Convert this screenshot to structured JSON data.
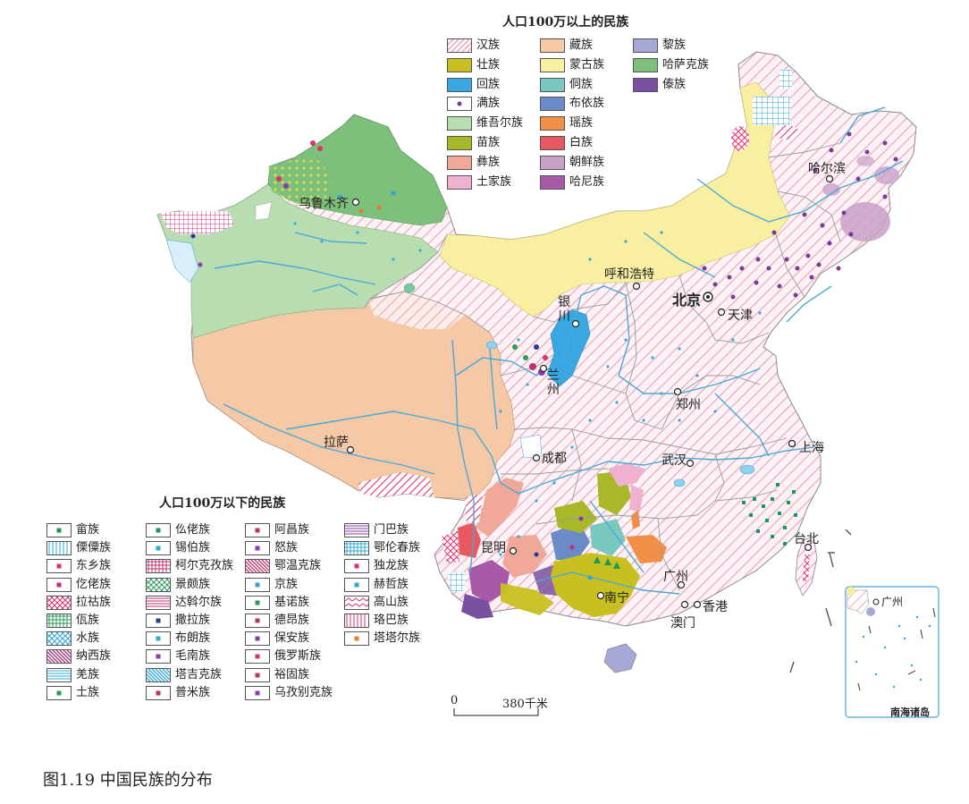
{
  "legend_major": {
    "title": "人口100万以上的民族",
    "items": [
      {
        "label": "汉族",
        "style": "hatch",
        "color": "#e8a0b8"
      },
      {
        "label": "壮族",
        "style": "solid",
        "color": "#c8c020"
      },
      {
        "label": "回族",
        "style": "solid",
        "color": "#3aa8e0"
      },
      {
        "label": "满族",
        "style": "dot",
        "color": "#7a3a9a"
      },
      {
        "label": "维吾尔族",
        "style": "solid",
        "color": "#b7ddb0"
      },
      {
        "label": "苗族",
        "style": "solid",
        "color": "#a8b828"
      },
      {
        "label": "彝族",
        "style": "solid",
        "color": "#f0a898"
      },
      {
        "label": "土家族",
        "style": "solid",
        "color": "#f0b0d0"
      },
      {
        "label": "藏族",
        "style": "solid",
        "color": "#f5c9a6"
      },
      {
        "label": "蒙古族",
        "style": "solid",
        "color": "#f8f0a0"
      },
      {
        "label": "侗族",
        "style": "solid",
        "color": "#78c8c0"
      },
      {
        "label": "布依族",
        "style": "solid",
        "color": "#6a8ac8"
      },
      {
        "label": "瑶族",
        "style": "solid",
        "color": "#f09048"
      },
      {
        "label": "白族",
        "style": "solid",
        "color": "#e85860"
      },
      {
        "label": "朝鲜族",
        "style": "solid",
        "color": "#c8a0c8"
      },
      {
        "label": "哈尼族",
        "style": "solid",
        "color": "#a85aa8"
      },
      {
        "label": "黎族",
        "style": "solid",
        "color": "#a8a8d8"
      },
      {
        "label": "哈萨克族",
        "style": "solid",
        "color": "#7cc07c"
      },
      {
        "label": "傣族",
        "style": "solid",
        "color": "#7a50a0"
      }
    ]
  },
  "legend_minor": {
    "title": "人口100万以下的民族",
    "items": [
      {
        "label": "畲族",
        "style": "sym",
        "color": "#1a9a5a"
      },
      {
        "label": "傈僳族",
        "style": "vlines",
        "color": "#2aa8d8"
      },
      {
        "label": "东乡族",
        "style": "sym",
        "color": "#e0306a"
      },
      {
        "label": "仡佬族",
        "style": "sym",
        "color": "#c03070"
      },
      {
        "label": "拉祜族",
        "style": "cross",
        "color": "#e0306a"
      },
      {
        "label": "佤族",
        "style": "grid",
        "color": "#2a9a5a"
      },
      {
        "label": "水族",
        "style": "cross",
        "color": "#2aa8d8"
      },
      {
        "label": "纳西族",
        "style": "diag",
        "color": "#a03080"
      },
      {
        "label": "羌族",
        "style": "hlines",
        "color": "#2aa8d8"
      },
      {
        "label": "土族",
        "style": "sym",
        "color": "#2a9a5a"
      },
      {
        "label": "仫佬族",
        "style": "sym",
        "color": "#1a9a5a"
      },
      {
        "label": "锡伯族",
        "style": "sym",
        "color": "#2aa8d8"
      },
      {
        "label": "柯尔克孜族",
        "style": "grid",
        "color": "#c03070"
      },
      {
        "label": "景颇族",
        "style": "cross",
        "color": "#2a9a5a"
      },
      {
        "label": "达斡尔族",
        "style": "hlines",
        "color": "#c03070"
      },
      {
        "label": "撒拉族",
        "style": "sym",
        "color": "#2a3a9a"
      },
      {
        "label": "布朗族",
        "style": "sym",
        "color": "#2aa8d8"
      },
      {
        "label": "毛南族",
        "style": "sym",
        "color": "#8a3ab0"
      },
      {
        "label": "塔吉克族",
        "style": "diag",
        "color": "#2aa8d8"
      },
      {
        "label": "普米族",
        "style": "sym",
        "color": "#c03070"
      },
      {
        "label": "阿昌族",
        "style": "sym",
        "color": "#c03070"
      },
      {
        "label": "怒族",
        "style": "sym",
        "color": "#8a3ab0"
      },
      {
        "label": "鄂温克族",
        "style": "diag",
        "color": "#c03070"
      },
      {
        "label": "京族",
        "style": "sym",
        "color": "#2aa8d8"
      },
      {
        "label": "基诺族",
        "style": "sym",
        "color": "#2a9a5a"
      },
      {
        "label": "德昂族",
        "style": "sym",
        "color": "#c03070"
      },
      {
        "label": "保安族",
        "style": "sym",
        "color": "#8a3ab0"
      },
      {
        "label": "俄罗斯族",
        "style": "sym",
        "color": "#e0306a"
      },
      {
        "label": "裕固族",
        "style": "sym",
        "color": "#c03070"
      },
      {
        "label": "乌孜别克族",
        "style": "sym",
        "color": "#8a3ab0"
      },
      {
        "label": "门巴族",
        "style": "hlines",
        "color": "#8a3ab0"
      },
      {
        "label": "鄂伦春族",
        "style": "grid",
        "color": "#2aa8d8"
      },
      {
        "label": "独龙族",
        "style": "sym",
        "color": "#e0306a"
      },
      {
        "label": "赫哲族",
        "style": "sym",
        "color": "#2aa8d8"
      },
      {
        "label": "高山族",
        "style": "zigzag",
        "color": "#e0306a"
      },
      {
        "label": "珞巴族",
        "style": "vlines",
        "color": "#e0306a"
      },
      {
        "label": "塔塔尔族",
        "style": "sym",
        "color": "#f07830"
      }
    ]
  },
  "cities": {
    "urumqi": "乌鲁木齐",
    "harbin": "哈尔滨",
    "hohhot": "呼和浩特",
    "beijing": "北京",
    "tianjin": "天津",
    "yinchuan": "银川",
    "lanzhou": "兰州",
    "zhengzhou": "郑州",
    "lhasa": "拉萨",
    "chengdu": "成都",
    "wuhan": "武汉",
    "shanghai": "上海",
    "kunming": "昆明",
    "nanning": "南宁",
    "guangzhou": "广州",
    "hongkong": "香港",
    "macau": "澳门",
    "taipei": "台北"
  },
  "scale_bar": {
    "zero": "0",
    "distance": "380千米"
  },
  "inset": {
    "title": "南海诸岛",
    "city": "广州"
  },
  "caption": "图1.19  中国民族的分布",
  "colors": {
    "han": "#e8a0b8",
    "tibetan": "#f5c9a6",
    "uyghur": "#b7ddb0",
    "kazakh": "#7cc07c",
    "mongol": "#f8f0a0",
    "border": "#888888",
    "river": "#4aa8d8"
  }
}
